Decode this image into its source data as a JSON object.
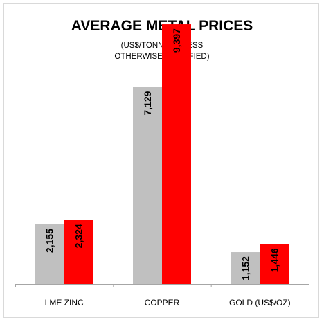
{
  "chart_data": {
    "type": "bar",
    "title": "AVERAGE METAL PRICES",
    "subtitle_lines": [
      "(US$/TONNE UNLESS",
      "OTHERWISE SPECIFIED)"
    ],
    "categories": [
      "LME ZINC",
      "COPPER",
      "GOLD (US$/OZ)"
    ],
    "series": [
      {
        "values": [
          2155,
          7129,
          1152
        ],
        "color": "#c0c0c0"
      },
      {
        "values": [
          2324,
          9397,
          1446
        ],
        "color": "#ff0000"
      }
    ],
    "value_labels": [
      [
        "2,155",
        "7,129",
        "1,152"
      ],
      [
        "2,324",
        "9,397",
        "1,446"
      ]
    ],
    "ylim": [
      0,
      10000
    ],
    "legend": "none",
    "grid": false
  }
}
